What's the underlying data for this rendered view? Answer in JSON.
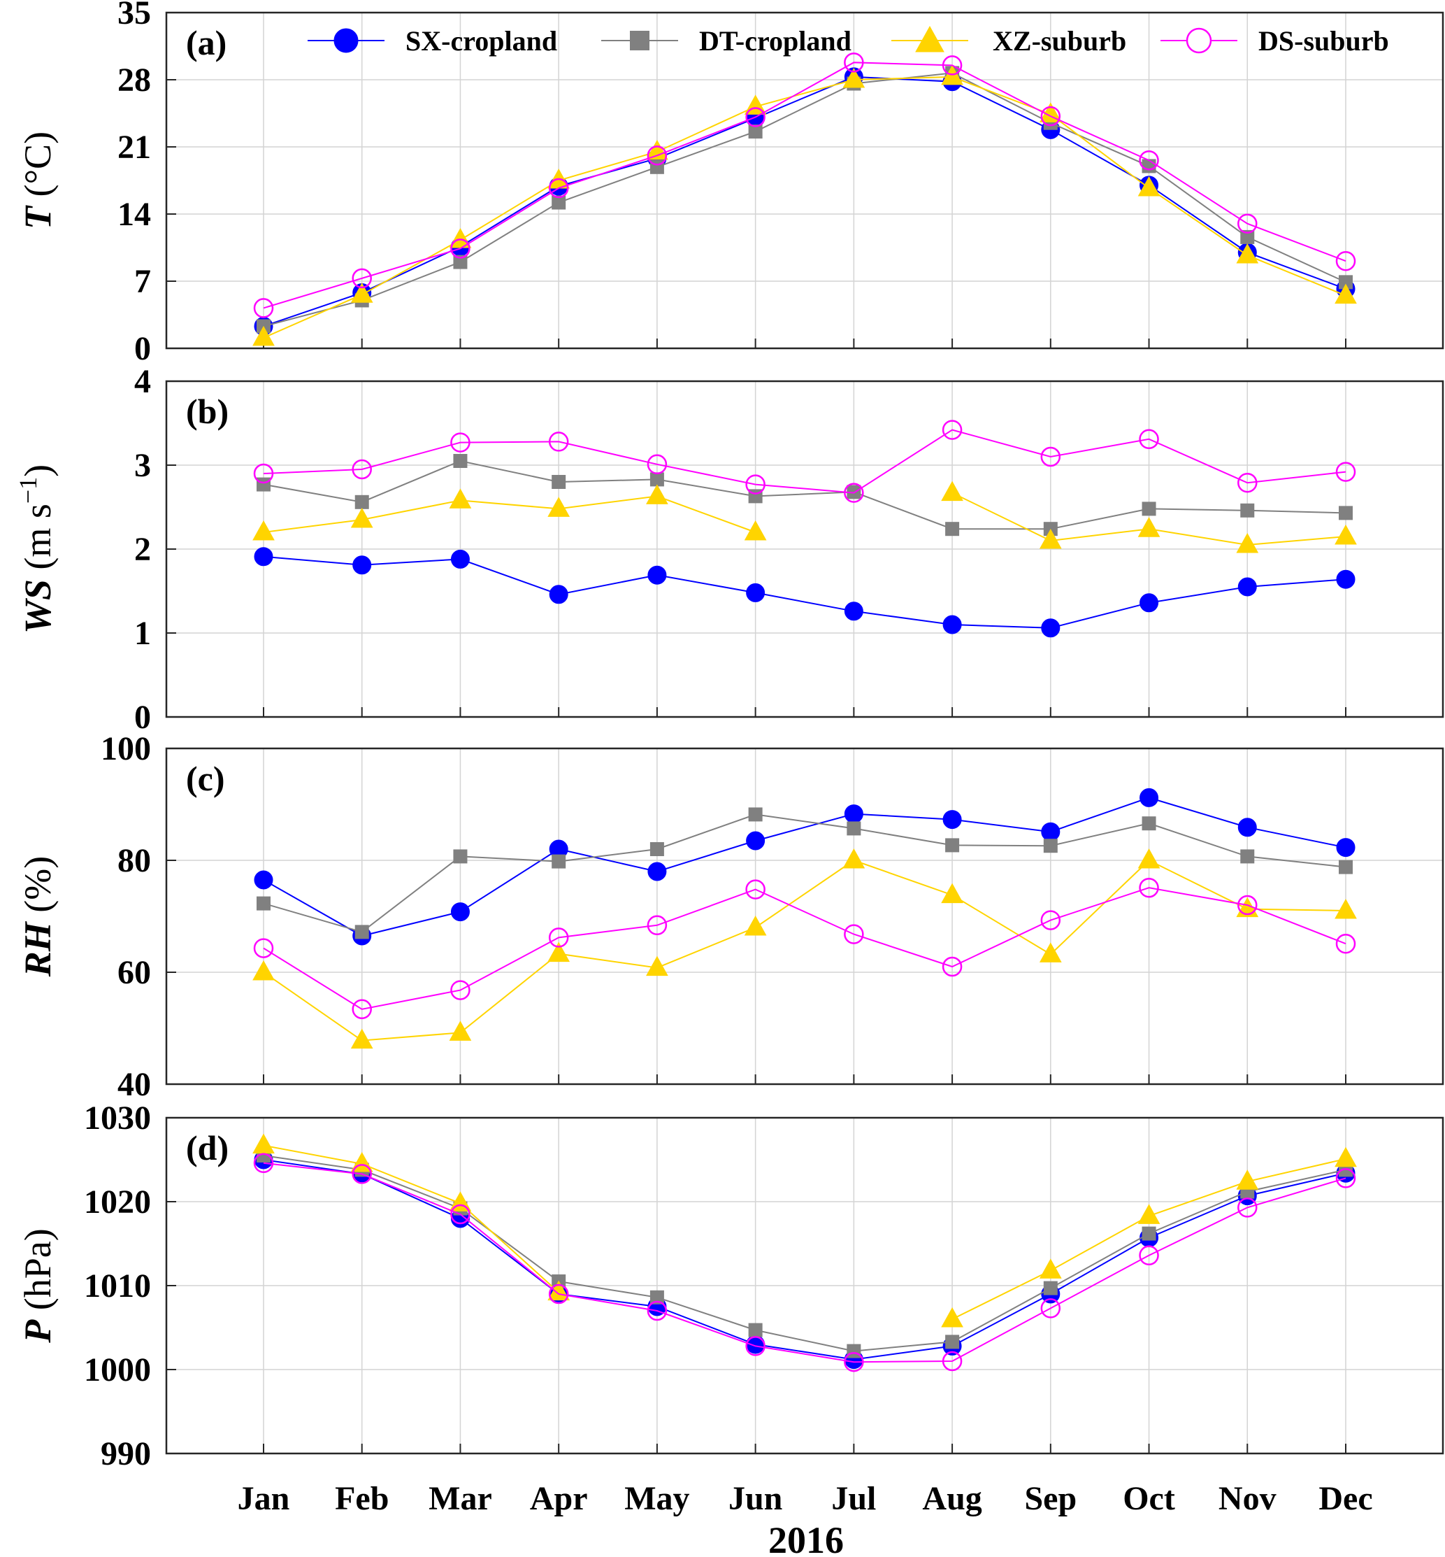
{
  "chart_data": {
    "type": "line",
    "x_categories": [
      "Jan",
      "Feb",
      "Mar",
      "Apr",
      "May",
      "Jun",
      "Jul",
      "Aug",
      "Sep",
      "Oct",
      "Nov",
      "Dec"
    ],
    "xlabel": "2016",
    "legend": [
      {
        "name": "SX-cropland",
        "color": "#0000ff",
        "marker": "filled-circle"
      },
      {
        "name": "DT-cropland",
        "color": "#808080",
        "marker": "filled-square"
      },
      {
        "name": "XZ-suburb",
        "color": "#ffd400",
        "marker": "filled-triangle"
      },
      {
        "name": "DS-suburb",
        "color": "#ff00ff",
        "marker": "open-circle"
      }
    ],
    "legend_location": "top, inside panel (a)",
    "grid": true,
    "panels": [
      {
        "label": "(a)",
        "ylabel_italic": "T",
        "ylabel_unit": "(°C)",
        "ylim": [
          0,
          35
        ],
        "yticks": [
          0,
          7,
          14,
          21,
          28,
          35
        ],
        "series": [
          {
            "name": "SX-cropland",
            "values": [
              2.3,
              5.8,
              10.6,
              16.9,
              19.8,
              24.0,
              28.3,
              27.8,
              22.8,
              17.0,
              10.0,
              6.2
            ]
          },
          {
            "name": "DT-cropland",
            "values": [
              2.3,
              5.0,
              9.0,
              15.2,
              18.9,
              22.6,
              27.6,
              28.7,
              23.5,
              19.0,
              11.6,
              6.9
            ]
          },
          {
            "name": "XZ-suburb",
            "values": [
              1.1,
              5.6,
              11.3,
              17.5,
              20.5,
              25.2,
              28.0,
              28.3,
              24.4,
              16.7,
              9.7,
              5.5
            ]
          },
          {
            "name": "DS-suburb",
            "values": [
              4.2,
              7.3,
              10.4,
              16.7,
              20.1,
              24.1,
              29.8,
              29.5,
              24.2,
              19.6,
              13.0,
              9.1
            ]
          }
        ]
      },
      {
        "label": "(b)",
        "ylabel_italic": "WS",
        "ylabel_unit": "(m s",
        "ylabel_sup": "−1",
        "ylabel_close": ")",
        "ylim": [
          0,
          4
        ],
        "yticks": [
          0,
          1,
          2,
          3,
          4
        ],
        "series": [
          {
            "name": "SX-cropland",
            "values": [
              1.91,
              1.81,
              1.88,
              1.46,
              1.69,
              1.48,
              1.26,
              1.1,
              1.06,
              1.36,
              1.55,
              1.64
            ]
          },
          {
            "name": "DT-cropland",
            "values": [
              2.77,
              2.56,
              3.05,
              2.8,
              2.83,
              2.63,
              2.68,
              2.24,
              2.24,
              2.48,
              2.46,
              2.43
            ]
          },
          {
            "name": "XZ-suburb",
            "values": [
              2.2,
              2.35,
              2.58,
              2.48,
              2.63,
              2.2,
              null,
              2.67,
              2.1,
              2.24,
              2.05,
              2.15
            ]
          },
          {
            "name": "DS-suburb",
            "values": [
              2.9,
              2.95,
              3.27,
              3.28,
              3.01,
              2.77,
              2.67,
              3.42,
              3.1,
              3.31,
              2.79,
              2.92
            ]
          }
        ]
      },
      {
        "label": "(c)",
        "ylabel_italic": "RH",
        "ylabel_unit": "(%)",
        "ylim": [
          40,
          100
        ],
        "yticks": [
          40,
          60,
          80,
          100
        ],
        "series": [
          {
            "name": "SX-cropland",
            "values": [
              76.5,
              66.5,
              70.8,
              82.0,
              78.0,
              83.5,
              88.3,
              87.3,
              85.1,
              91.2,
              85.9,
              82.3
            ]
          },
          {
            "name": "DT-cropland",
            "values": [
              72.3,
              67.2,
              80.7,
              79.8,
              82.0,
              88.2,
              85.7,
              82.7,
              82.6,
              86.6,
              80.7,
              78.8
            ]
          },
          {
            "name": "XZ-suburb",
            "values": [
              60.0,
              47.8,
              49.2,
              63.3,
              60.8,
              68.0,
              80.0,
              73.8,
              63.2,
              80.0,
              71.3,
              71.0
            ]
          },
          {
            "name": "DS-suburb",
            "values": [
              64.3,
              53.4,
              56.8,
              66.2,
              68.4,
              74.8,
              66.8,
              61.0,
              69.3,
              75.1,
              72.0,
              65.1
            ]
          }
        ]
      },
      {
        "label": "(d)",
        "ylabel_italic": "P",
        "ylabel_unit": "(hPa)",
        "ylim": [
          990,
          1030
        ],
        "yticks": [
          990,
          1000,
          1010,
          1020,
          1030
        ],
        "series": [
          {
            "name": "SX-cropland",
            "values": [
              1025.0,
              1023.3,
              1018.0,
              1009.0,
              1007.5,
              1003.0,
              1001.2,
              1002.8,
              1009.0,
              1015.7,
              1020.7,
              1023.4
            ]
          },
          {
            "name": "DT-cropland",
            "values": [
              1025.5,
              1023.8,
              1019.2,
              1010.5,
              1008.6,
              1004.7,
              1002.2,
              1003.3,
              1009.7,
              1016.2,
              1021.2,
              1023.8
            ]
          },
          {
            "name": "XZ-suburb",
            "values": [
              1026.7,
              1024.5,
              1019.8,
              1009.2,
              null,
              null,
              null,
              1006.0,
              1011.8,
              1018.3,
              1022.4,
              1025.1
            ]
          },
          {
            "name": "DS-suburb",
            "values": [
              1024.6,
              1023.3,
              1018.5,
              1009.0,
              1007.0,
              1002.8,
              1000.9,
              1001.0,
              1007.3,
              1013.6,
              1019.3,
              1022.8
            ]
          }
        ]
      }
    ]
  }
}
